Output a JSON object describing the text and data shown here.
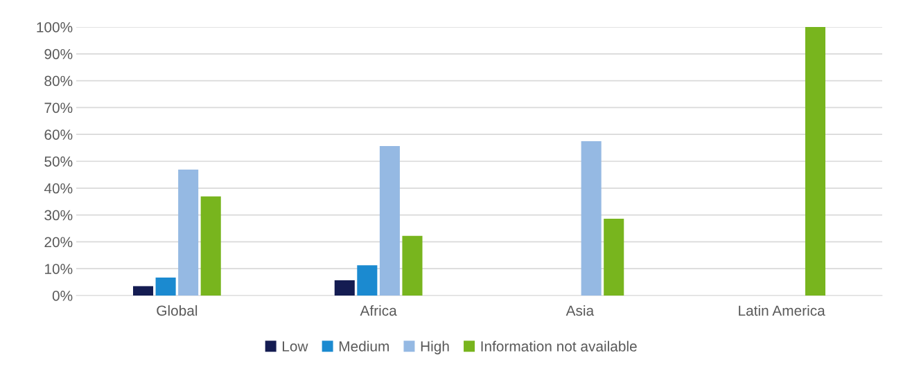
{
  "chart_data": {
    "type": "bar",
    "categories": [
      "Global",
      "Africa",
      "Asia",
      "Latin America"
    ],
    "series": [
      {
        "name": "Low",
        "color": "#141c52",
        "values": [
          3.5,
          5.7,
          null,
          null
        ]
      },
      {
        "name": "Medium",
        "color": "#1b8ad0",
        "values": [
          6.7,
          11.3,
          null,
          null
        ]
      },
      {
        "name": "High",
        "color": "#95b9e3",
        "values": [
          46.9,
          55.7,
          57.5,
          null
        ]
      },
      {
        "name": "Information not available",
        "color": "#78b51e",
        "values": [
          36.9,
          22.2,
          28.6,
          100
        ]
      }
    ],
    "ylim": [
      0,
      100
    ],
    "yticks": [
      {
        "value": 0,
        "label": "0%"
      },
      {
        "value": 10,
        "label": "10%"
      },
      {
        "value": 20,
        "label": "20%"
      },
      {
        "value": 30,
        "label": "30%"
      },
      {
        "value": 40,
        "label": "40%"
      },
      {
        "value": 50,
        "label": "50%"
      },
      {
        "value": 60,
        "label": "60%"
      },
      {
        "value": 70,
        "label": "70%"
      },
      {
        "value": 80,
        "label": "80%"
      },
      {
        "value": 90,
        "label": "90%"
      },
      {
        "value": 100,
        "label": "100%"
      }
    ],
    "grid": "y",
    "legend": "bottom"
  }
}
